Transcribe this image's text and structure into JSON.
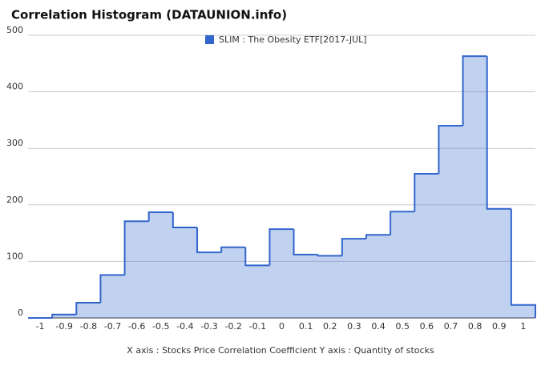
{
  "chart_data": {
    "type": "histogram",
    "title": "Correlation Histogram (DATAUNION.info)",
    "x_label": "X axis : Stocks Price Correlation Coefficient  Y axis : Quantity of stocks",
    "bins": [
      -1.05,
      -0.95,
      -0.85,
      -0.75,
      -0.65,
      -0.55,
      -0.45,
      -0.35,
      -0.25,
      -0.15,
      -0.05,
      0.05,
      0.15,
      0.25,
      0.35,
      0.45,
      0.55,
      0.65,
      0.75,
      0.85,
      0.95,
      1.05
    ],
    "series": [
      {
        "name": "SLIM : The Obesity ETF[2017-JUL]",
        "color": "#3366cc",
        "values": [
          0,
          6,
          27,
          76,
          171,
          187,
          160,
          116,
          125,
          93,
          157,
          112,
          110,
          140,
          147,
          188,
          255,
          340,
          463,
          193,
          23
        ]
      }
    ],
    "xlim": [
      -1.05,
      1.05
    ],
    "xticks": [
      -1,
      -0.9,
      -0.8,
      -0.7,
      -0.6,
      -0.5,
      -0.4,
      -0.3,
      -0.2,
      -0.1,
      0,
      0.1,
      0.2,
      0.3,
      0.4,
      0.5,
      0.6,
      0.7,
      0.8,
      0.9,
      1
    ],
    "ylim": [
      0,
      500
    ],
    "yticks": [
      0,
      100,
      200,
      300,
      400,
      500
    ],
    "grid": true,
    "legend": "top"
  }
}
